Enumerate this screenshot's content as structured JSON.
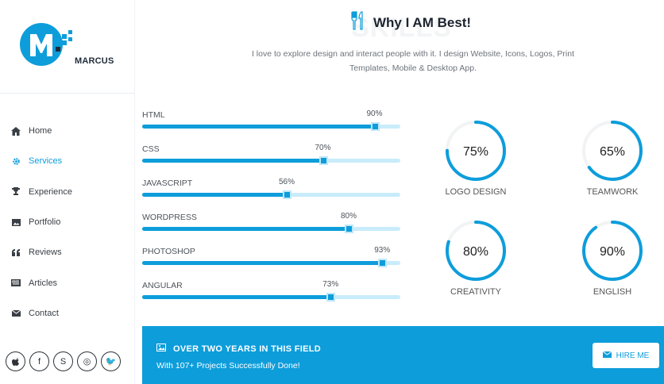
{
  "brand": {
    "name": "MARCUS",
    "accent": "#0d9ddb"
  },
  "nav": [
    {
      "label": "Home",
      "icon": "home-icon",
      "active": false
    },
    {
      "label": "Services",
      "icon": "gear-icon",
      "active": true
    },
    {
      "label": "Experience",
      "icon": "trophy-icon",
      "active": false
    },
    {
      "label": "Portfolio",
      "icon": "image-icon",
      "active": false
    },
    {
      "label": "Reviews",
      "icon": "quote-icon",
      "active": false
    },
    {
      "label": "Articles",
      "icon": "newspaper-icon",
      "active": false
    },
    {
      "label": "Contact",
      "icon": "envelope-icon",
      "active": false
    }
  ],
  "social": [
    {
      "icon": "apple-icon",
      "glyph": ""
    },
    {
      "icon": "facebook-icon",
      "glyph": "f"
    },
    {
      "icon": "skype-icon",
      "glyph": "S"
    },
    {
      "icon": "instagram-icon",
      "glyph": "◎"
    },
    {
      "icon": "twitter-icon",
      "glyph": "🐦"
    }
  ],
  "section": {
    "watermark": "SKILLS",
    "title": "Why I AM Best!",
    "subtitle": "I love to explore design and interact people with it. I design Website, Icons, Logos, Print Templates, Mobile & Desktop App."
  },
  "skills": [
    {
      "label": "HTML",
      "value": 90,
      "text": "90%"
    },
    {
      "label": "CSS",
      "value": 70,
      "text": "70%"
    },
    {
      "label": "JAVASCRIPT",
      "value": 56,
      "text": "56%"
    },
    {
      "label": "WORDPRESS",
      "value": 80,
      "text": "80%"
    },
    {
      "label": "PHOTOSHOP",
      "value": 93,
      "text": "93%"
    },
    {
      "label": "ANGULAR",
      "value": 73,
      "text": "73%"
    }
  ],
  "circles": [
    {
      "label": "LOGO DESIGN",
      "value": 75,
      "text": "75%"
    },
    {
      "label": "TEAMWORK",
      "value": 65,
      "text": "65%"
    },
    {
      "label": "CREATIVITY",
      "value": 80,
      "text": "80%"
    },
    {
      "label": "ENGLISH",
      "value": 90,
      "text": "90%"
    }
  ],
  "banner": {
    "title": "OVER TWO YEARS IN THIS FIELD",
    "subtitle": "With 107+ Projects Successfully Done!",
    "button": "HIRE ME"
  }
}
